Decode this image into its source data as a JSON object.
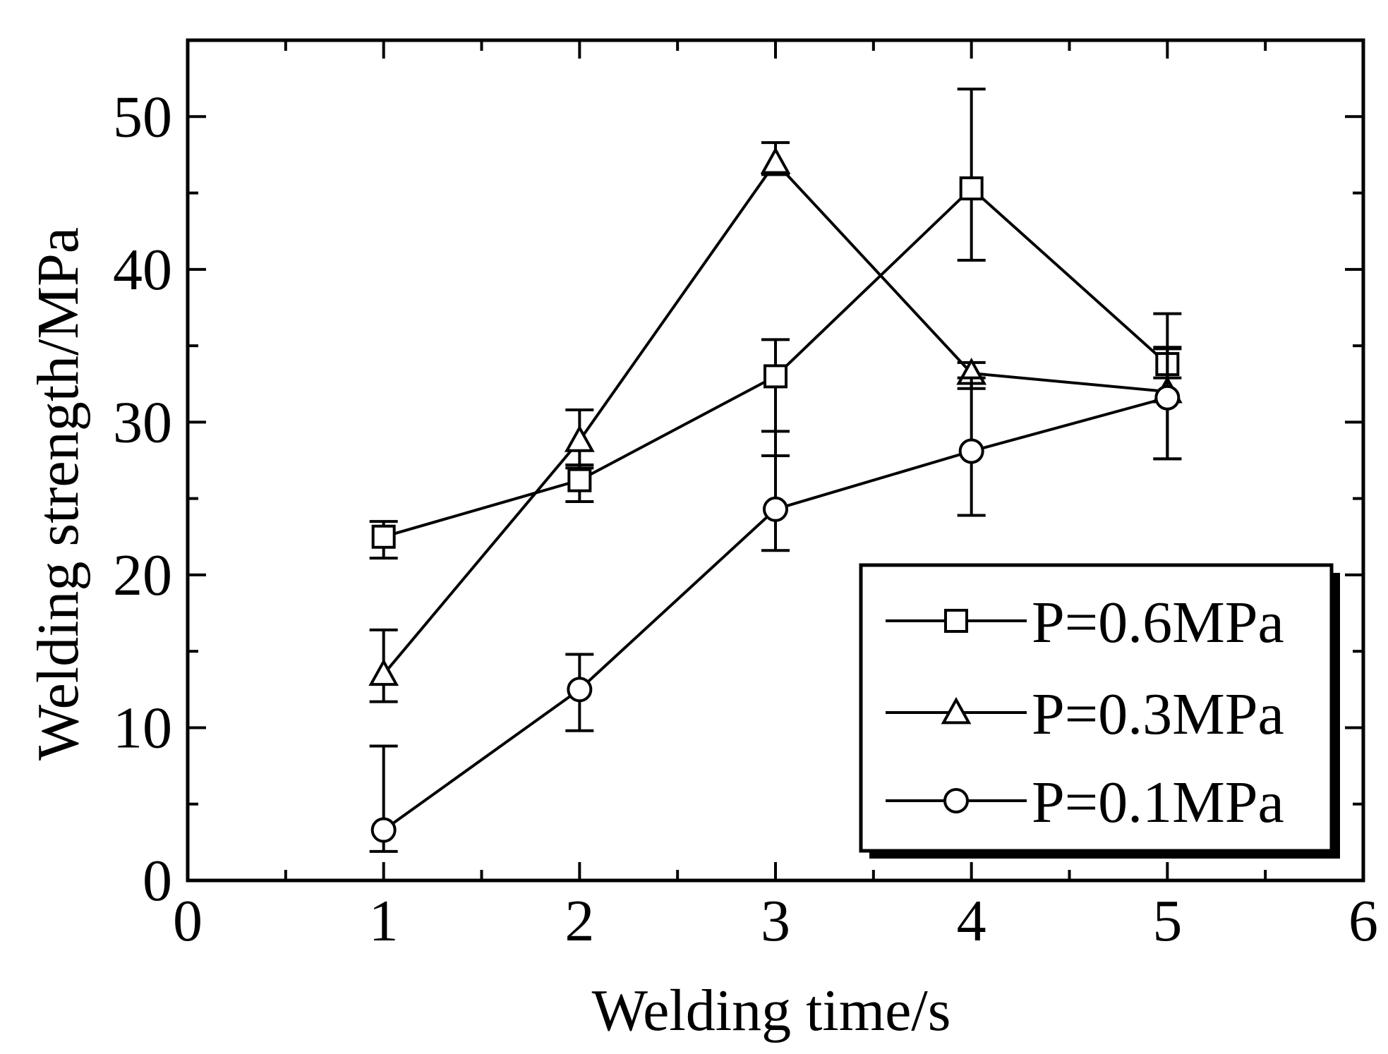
{
  "chart_data": {
    "type": "line",
    "title": "",
    "xlabel": "Welding time/s",
    "ylabel": "Welding strength/MPa",
    "xlim": [
      0,
      6
    ],
    "ylim": [
      0,
      55
    ],
    "xticks": [
      0,
      1,
      2,
      3,
      4,
      5,
      6
    ],
    "yticks": [
      0,
      10,
      20,
      30,
      40,
      50
    ],
    "x_minor_step": 0.5,
    "y_minor_step": 5,
    "grid": false,
    "legend_position": "bottom-right",
    "series": [
      {
        "name": "P=0.6MPa",
        "marker": "square",
        "x": [
          1,
          2,
          3,
          4,
          5
        ],
        "y": [
          22.5,
          26.2,
          33.0,
          45.3,
          33.8
        ],
        "err_low": [
          1.4,
          1.4,
          5.2,
          4.7,
          0.9
        ],
        "err_high": [
          1.0,
          1.0,
          2.4,
          6.5,
          3.3
        ]
      },
      {
        "name": "P=0.3MPa",
        "marker": "triangle",
        "x": [
          1,
          2,
          3,
          4,
          5
        ],
        "y": [
          13.5,
          28.8,
          47.0,
          33.2,
          32.0
        ],
        "err_low": [
          1.8,
          1.8,
          0.8,
          1.0,
          4.4
        ],
        "err_high": [
          2.9,
          2.0,
          1.3,
          0.7,
          2.8
        ]
      },
      {
        "name": "P=0.1MPa",
        "marker": "circle",
        "x": [
          1,
          2,
          3,
          4,
          5
        ],
        "y": [
          3.3,
          12.5,
          24.3,
          28.1,
          31.6
        ],
        "err_low": [
          1.4,
          2.7,
          2.7,
          4.2,
          4.0
        ],
        "err_high": [
          5.5,
          2.3,
          5.1,
          4.8,
          3.3
        ]
      }
    ]
  }
}
